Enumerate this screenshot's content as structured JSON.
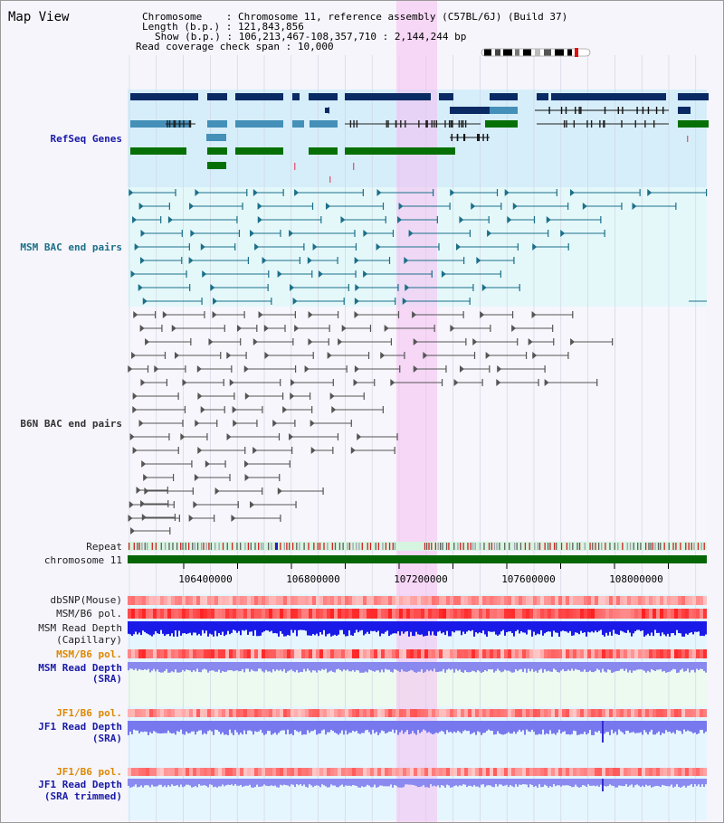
{
  "view": {
    "title": "Map View"
  },
  "info": {
    "chromosome_label": "Chromosome",
    "chromosome_value": "Chromosome 11, reference assembly (C57BL/6J) (Build 37)",
    "length_label": "Length (b.p.)",
    "length_value": "121,843,856",
    "show_label": "Show (b.p.)",
    "show_value": "106,213,467-108,357,710 : 2,144,244 bp",
    "coverage_label": "Read coverage check span",
    "coverage_value": "10,000"
  },
  "tracks": {
    "refseq": "RefSeq Genes",
    "msm_bac": "MSM BAC end pairs",
    "b6n_bac": "B6N BAC end pairs",
    "repeat": "Repeat",
    "chromosome": "chromosome 11",
    "dbsnp": "dbSNP(Mouse)",
    "msm_b6_pol_1": "MSM/B6 pol.",
    "msm_read_depth_cap_1": "MSM Read Depth",
    "msm_read_depth_cap_2": "(Capillary)",
    "msm_b6_pol_2": "MSM/B6 pol.",
    "msm_read_depth_sra_1": "MSM Read Depth",
    "msm_read_depth_sra_2": "(SRA)",
    "jf1_b6_pol_1": "JF1/B6 pol.",
    "jf1_read_depth_sra_1": "JF1 Read Depth",
    "jf1_read_depth_sra_2": "(SRA)",
    "jf1_b6_pol_2": "JF1/B6 pol.",
    "jf1_read_depth_trim_1": "JF1 Read Depth",
    "jf1_read_depth_trim_2": "(SRA trimmed)"
  },
  "axis": {
    "ticks": [
      "106400000",
      "106800000",
      "107200000",
      "107600000",
      "108000000"
    ]
  },
  "colors": {
    "highlight": "#f6d6f3",
    "refseq_bg": "#d8f0fb",
    "msm_bg": "#e6fbfb",
    "navy": "#0a2a63",
    "steel": "#4490b8",
    "green": "#067006",
    "teal": "#1c6f89",
    "label_blue": "#1a1aa8",
    "label_teal": "#1c6f89",
    "label_orange": "#dd8800"
  }
}
